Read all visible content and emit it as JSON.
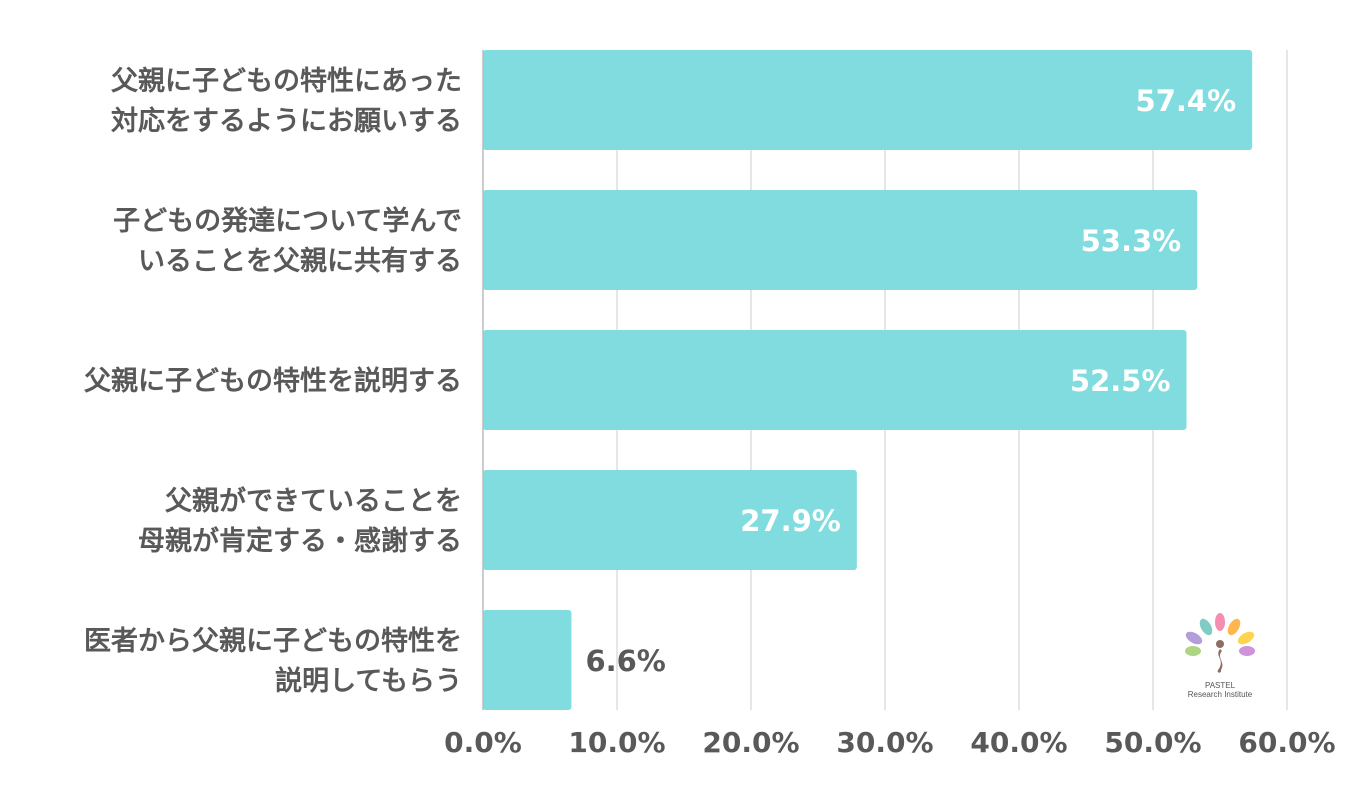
{
  "chart_data": {
    "type": "bar",
    "orientation": "horizontal",
    "categories": [
      [
        "父親に子どもの特性にあった",
        "対応をするようにお願いする"
      ],
      [
        "子どもの発達について学んで",
        "いることを父親に共有する"
      ],
      [
        "父親に子どもの特性を説明する"
      ],
      [
        "父親ができていることを",
        "母親が肯定する・感謝する"
      ],
      [
        "医者から父親に子どもの特性を",
        "説明してもらう"
      ]
    ],
    "values": [
      57.4,
      53.3,
      52.5,
      27.9,
      6.6
    ],
    "value_labels": [
      "57.4%",
      "53.3%",
      "52.5%",
      "27.9%",
      "6.6%"
    ],
    "xlim": [
      0,
      60
    ],
    "x_ticks": [
      0,
      10,
      20,
      30,
      40,
      50,
      60
    ],
    "x_tick_labels": [
      "0.0%",
      "10.0%",
      "20.0%",
      "30.0%",
      "40.0%",
      "50.0%",
      "60.0%"
    ],
    "grid": true,
    "title": "",
    "xlabel": "",
    "ylabel": ""
  },
  "colors": {
    "bar": "#80dcdf",
    "grid": "#dddddd",
    "axis": "#bbbbbb",
    "text": "#595959",
    "label_inside": "#ffffff",
    "label_outside": "#595959"
  },
  "logo": {
    "line1": "PASTEL",
    "line2": "Research Institute"
  }
}
